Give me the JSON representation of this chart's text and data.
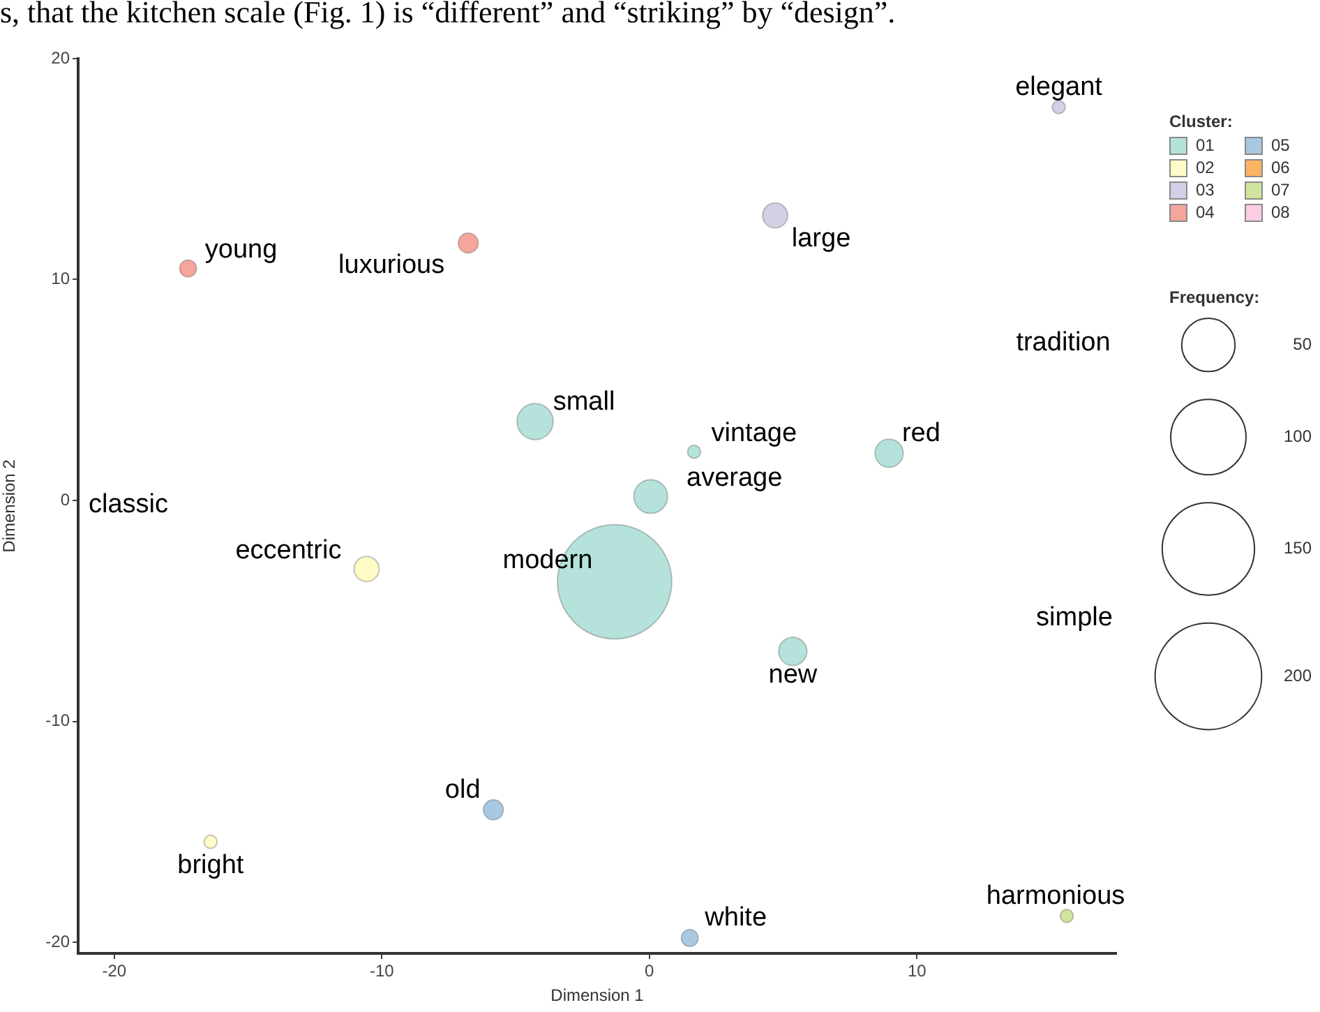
{
  "chart_data": {
    "type": "bubble",
    "xlabel": "Dimension 1",
    "ylabel": "Dimension 2",
    "legend_title": "Cluster:",
    "legend": "right",
    "grid": false,
    "xlim": [
      -21.35,
      17.45
    ],
    "xticks": [
      -20,
      -10,
      0,
      10
    ],
    "ylim": [
      -20.5,
      20
    ],
    "yticks": [
      -20,
      -10,
      0,
      10,
      20
    ],
    "size_legend": [
      50,
      100,
      150,
      200
    ],
    "series": [
      {
        "name": "01",
        "color": "#b5e3db",
        "x": [
          -1.3,
          -4.27,
          0.05,
          8.96,
          5.36,
          1.67
        ],
        "values": [
          -3.68,
          3.57,
          0.18,
          2.14,
          -6.83,
          2.2
        ],
        "sizes": [
          230,
          23,
          20,
          14,
          14,
          3
        ]
      },
      {
        "name": "02",
        "color": "#fffcc8",
        "x": [
          -10.57,
          -16.4
        ],
        "values": [
          -3.1,
          -15.45
        ],
        "sizes": [
          11,
          3
        ]
      },
      {
        "name": "03",
        "color": "#d3d1e6",
        "x": [
          4.7,
          15.3
        ],
        "values": [
          12.9,
          17.8
        ],
        "sizes": [
          11,
          3
        ]
      },
      {
        "name": "04",
        "color": "#f5a59b",
        "x": [
          -17.24,
          -6.77
        ],
        "values": [
          10.5,
          11.65
        ],
        "sizes": [
          5,
          7
        ]
      },
      {
        "name": "05",
        "color": "#a9c8e2",
        "x": [
          -5.83,
          1.51
        ],
        "values": [
          -14.0,
          -19.8
        ],
        "sizes": [
          7,
          5
        ]
      },
      {
        "name": "06",
        "color": "#fdb462"
      },
      {
        "name": "07",
        "color": "#cfe59e",
        "x": [
          15.6
        ],
        "values": [
          -18.8
        ],
        "sizes": [
          3
        ]
      },
      {
        "name": "08",
        "color": "#fccde5"
      }
    ],
    "annotations": [
      "s, that the kitchen scale (Fig. 1) is “different” and “striking” by “design”.",
      "Frequency:",
      "classic",
      "tradition",
      "simple",
      {
        "text": "modern",
        "x": -1.3,
        "y": -3.68
      },
      {
        "text": "small",
        "x": -4.27,
        "y": 3.57
      },
      {
        "text": "average",
        "x": 0.05,
        "y": 0.18
      },
      {
        "text": "red",
        "x": 8.96,
        "y": 2.14
      },
      {
        "text": "new",
        "x": 5.36,
        "y": -6.83
      },
      {
        "text": "vintage",
        "x": 1.67,
        "y": 2.2
      },
      {
        "text": "eccentric",
        "x": -10.57,
        "y": -3.1
      },
      {
        "text": "bright",
        "x": -16.4,
        "y": -15.45
      },
      {
        "text": "large",
        "x": 4.7,
        "y": 12.9
      },
      {
        "text": "elegant",
        "x": 15.3,
        "y": 17.8
      },
      {
        "text": "young",
        "x": -17.24,
        "y": 10.5
      },
      {
        "text": "luxurious",
        "x": -6.77,
        "y": 11.65
      },
      {
        "text": "old",
        "x": -5.83,
        "y": -14.0
      },
      {
        "text": "white",
        "x": 1.51,
        "y": -19.8
      },
      {
        "text": "harmonious",
        "x": 15.6,
        "y": -18.8
      }
    ]
  }
}
